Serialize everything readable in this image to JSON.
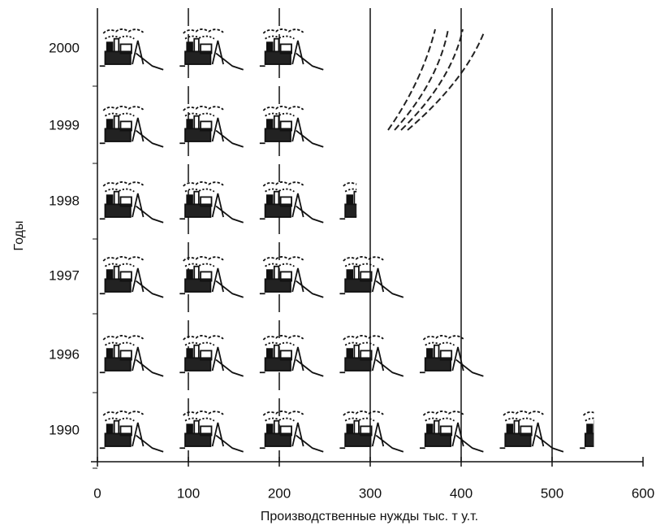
{
  "chart_data": {
    "type": "pictogram_bar",
    "x_label": "Производственные нужды тыс. т у.т.",
    "y_label": "Годы",
    "categories": [
      "2000",
      "1999",
      "1998",
      "1997",
      "1996",
      "1990"
    ],
    "values": [
      250,
      250,
      285,
      353,
      428,
      546
    ],
    "color": "#111111",
    "xlim": [
      0,
      600
    ],
    "xticks": [
      0,
      100,
      200,
      300,
      400,
      500,
      600
    ],
    "grid": true
  }
}
